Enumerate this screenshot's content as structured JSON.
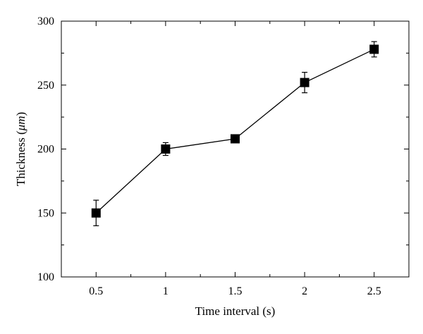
{
  "chart_data": {
    "type": "line",
    "title": "",
    "xlabel": "Time interval (s)",
    "ylabel": "Thickness (μm)",
    "ylabel_parts": {
      "prefix": "Thickness (",
      "symbol": "μm",
      "suffix": ")"
    },
    "xlim": [
      0.25,
      2.75
    ],
    "ylim": [
      100,
      300
    ],
    "x_ticks": [
      0.5,
      1,
      1.5,
      2,
      2.5
    ],
    "x_tick_labels": [
      "0.5",
      "1",
      "1.5",
      "2",
      "2.5"
    ],
    "y_ticks": [
      100,
      150,
      200,
      250,
      300
    ],
    "y_tick_labels": [
      "100",
      "150",
      "200",
      "250",
      "300"
    ],
    "grid": false,
    "legend": "none",
    "series": [
      {
        "marker": "square",
        "color": "#000000",
        "x": [
          0.5,
          1,
          1.5,
          2,
          2.5
        ],
        "y": [
          150,
          200,
          208,
          252,
          278
        ],
        "error": [
          10,
          5,
          2,
          8,
          6
        ]
      }
    ]
  }
}
